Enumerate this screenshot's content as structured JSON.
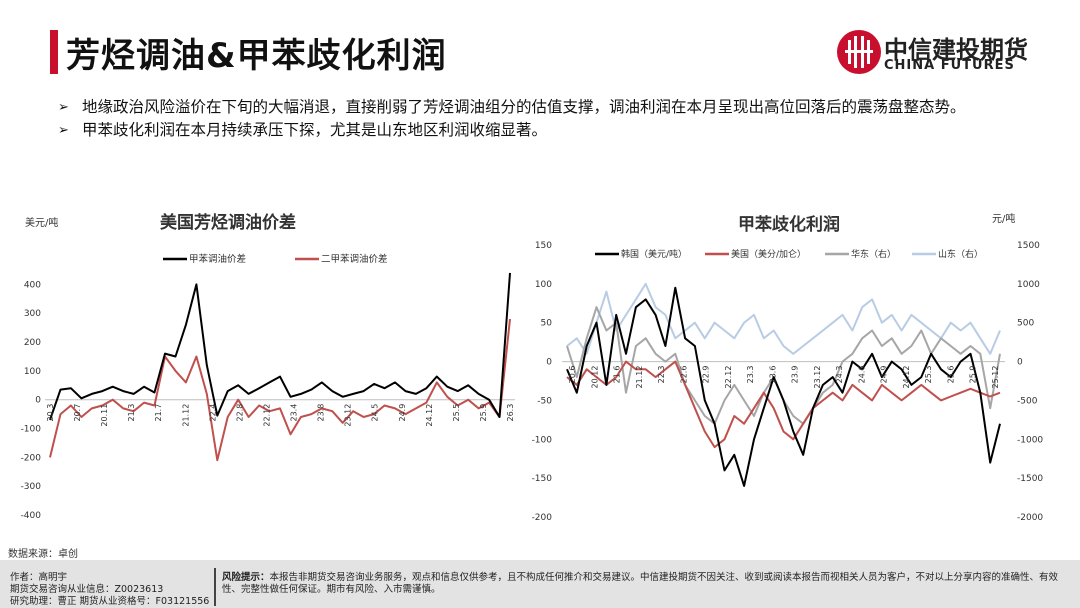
{
  "header": {
    "title": "芳烃调油&甲苯歧化利润",
    "logo_cn": "中信建投期货",
    "logo_en": "CHINA FUTURES"
  },
  "bullets": [
    "地缘政治风险溢价在下旬的大幅消退，直接削弱了芳烃调油组分的估值支撑，调油利润在本月呈现出高位回落后的震荡盘整态势。",
    "甲苯歧化利润在本月持续承压下探，尤其是山东地区利润收缩显著。"
  ],
  "source": "数据来源：卓创",
  "footer": {
    "author": "作者：高明宇",
    "license": "期货交易咨询从业信息：Z0023613",
    "assistant": "研究助理：曹正 期货从业资格号：F03121556",
    "risk_label": "风险提示：",
    "risk_text": "本报告非期货交易咨询业务服务，观点和信息仅供参考，且不构成任何推介和交易建议。中信建投期货不因关注、收到或阅读本报告而视相关人员为客户，不对以上分享内容的准确性、有效性、完整性做任何保证。期市有风险、入市需谨慎。"
  },
  "chart_data": [
    {
      "type": "line",
      "title": "美国芳烃调油价差",
      "ylabel": "美元/吨",
      "ylim": [
        -400,
        450
      ],
      "yticks": [
        "400",
        "300",
        "200",
        "100",
        "0",
        "-100",
        "-200",
        "-300",
        "-400"
      ],
      "x_ticks": [
        "20.3",
        "20.7",
        "20.11",
        "21.3",
        "21.7",
        "21.12",
        "22.4",
        "22.8",
        "22.12",
        "23.4",
        "23.8",
        "23.12",
        "24.5",
        "24.9",
        "24.12",
        "25.5",
        "25.9",
        "26.3"
      ],
      "series": [
        {
          "name": "甲苯调油价差",
          "color": "#000000",
          "values": [
            -70,
            35,
            40,
            5,
            20,
            30,
            45,
            30,
            20,
            45,
            25,
            160,
            150,
            260,
            400,
            120,
            -55,
            30,
            50,
            20,
            40,
            60,
            80,
            10,
            20,
            35,
            60,
            30,
            10,
            20,
            30,
            55,
            40,
            60,
            30,
            20,
            40,
            80,
            45,
            30,
            50,
            20,
            0,
            -60,
            440
          ]
        },
        {
          "name": "二甲苯调油价差",
          "color": "#c0504d",
          "values": [
            -200,
            -50,
            -20,
            -60,
            -30,
            -20,
            0,
            -30,
            -40,
            -10,
            -20,
            150,
            100,
            60,
            150,
            20,
            -210,
            -60,
            0,
            -60,
            -20,
            -40,
            -30,
            -120,
            -60,
            -50,
            -30,
            -40,
            -80,
            -40,
            -60,
            -50,
            -20,
            -30,
            -50,
            -30,
            -10,
            60,
            10,
            -20,
            0,
            -30,
            -10,
            -60,
            280
          ]
        }
      ]
    },
    {
      "type": "line",
      "title": "甲苯歧化利润",
      "ylabel_right": "元/吨",
      "ylim_left": [
        -200,
        150
      ],
      "ylim_right": [
        -2000,
        1500
      ],
      "yticks_left": [
        "150",
        "100",
        "50",
        "0",
        "-50",
        "-100",
        "-150",
        "-200"
      ],
      "yticks_right": [
        "1500",
        "1000",
        "500",
        "0",
        "-500",
        "-1000",
        "-1500",
        "-2000"
      ],
      "x_ticks": [
        "20.6",
        "20.12",
        "21.6",
        "21.12",
        "22.3",
        "22.6",
        "22.9",
        "22.12",
        "23.3",
        "23.6",
        "23.9",
        "23.12",
        "24.3",
        "24.6",
        "24.9",
        "24.12",
        "25.3",
        "25.6",
        "25.9",
        "25.12"
      ],
      "series": [
        {
          "name": "韩国（美元/吨）",
          "color": "#000000",
          "axis": "left",
          "values": [
            -10,
            -40,
            20,
            50,
            -30,
            60,
            10,
            70,
            80,
            60,
            20,
            95,
            30,
            20,
            -50,
            -80,
            -140,
            -120,
            -160,
            -100,
            -60,
            -20,
            -50,
            -90,
            -120,
            -60,
            -30,
            -20,
            -40,
            0,
            -10,
            10,
            -20,
            0,
            -10,
            -30,
            -20,
            10,
            -10,
            -20,
            0,
            10,
            -40,
            -130,
            -80
          ]
        },
        {
          "name": "美国（美分/加仑）",
          "color": "#c0504d",
          "axis": "left",
          "values": [
            -20,
            -30,
            -10,
            -20,
            -30,
            -20,
            0,
            -10,
            -10,
            -20,
            -10,
            0,
            -30,
            -60,
            -90,
            -110,
            -100,
            -70,
            -80,
            -60,
            -40,
            -60,
            -90,
            -100,
            -80,
            -60,
            -50,
            -40,
            -50,
            -30,
            -40,
            -50,
            -30,
            -40,
            -50,
            -40,
            -30,
            -40,
            -50,
            -45,
            -40,
            -35,
            -40,
            -45,
            -40
          ]
        },
        {
          "name": "华东（右）",
          "color": "#a6a6a6",
          "axis": "right",
          "values": [
            200,
            -200,
            300,
            700,
            400,
            500,
            -400,
            200,
            300,
            100,
            0,
            100,
            -300,
            -500,
            -700,
            -800,
            -500,
            -300,
            -500,
            -700,
            -400,
            -200,
            -500,
            -700,
            -800,
            -600,
            -400,
            -300,
            0,
            100,
            300,
            400,
            200,
            300,
            100,
            200,
            400,
            100,
            300,
            200,
            100,
            200,
            100,
            -600,
            100
          ]
        },
        {
          "name": "山东（右）",
          "color": "#b8cce4",
          "axis": "right",
          "values": [
            200,
            300,
            100,
            500,
            900,
            400,
            600,
            800,
            1000,
            700,
            600,
            300,
            400,
            500,
            300,
            500,
            400,
            300,
            500,
            600,
            300,
            400,
            200,
            100,
            200,
            300,
            400,
            500,
            600,
            400,
            700,
            800,
            500,
            600,
            400,
            600,
            500,
            400,
            300,
            500,
            400,
            500,
            300,
            100,
            400
          ]
        }
      ]
    }
  ]
}
